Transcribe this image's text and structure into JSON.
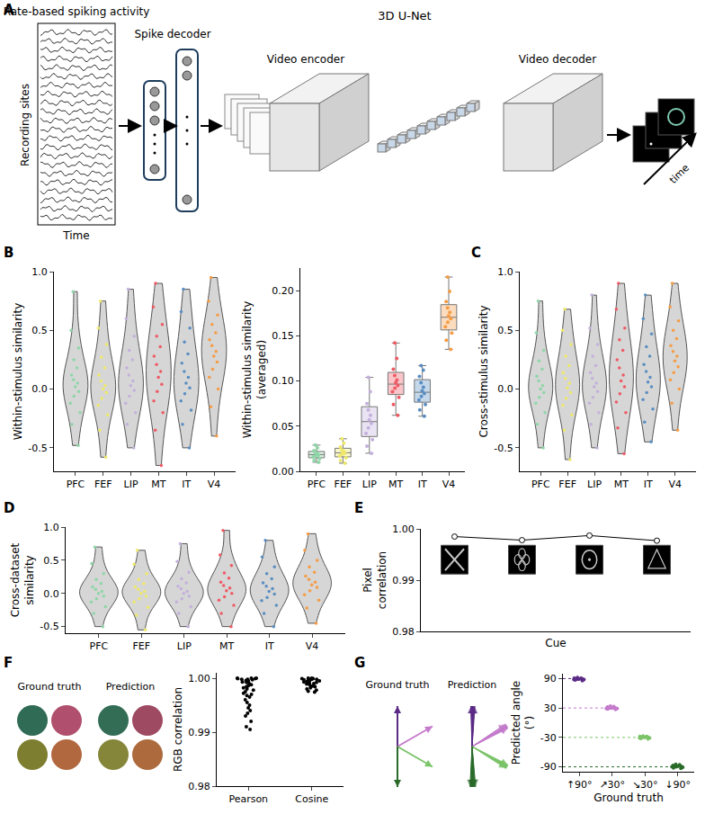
{
  "diagram": {
    "panel": "A",
    "trace_title": "Rate-based spiking activity",
    "y_label": "Recording sites",
    "x_label": "Time",
    "decoder_label": "Spike decoder",
    "network_label": "3D U-Net",
    "encoder_label": "Video encoder",
    "video_decoder_label": "Video decoder",
    "output_label": "time"
  },
  "chart_data": [
    {
      "panel": "B",
      "type": "violin",
      "ylabel": "Within-stimulus similarity",
      "categories": [
        "PFC",
        "FEF",
        "LIP",
        "MT",
        "IT",
        "V4"
      ],
      "colors": [
        "#8fd6a8",
        "#eee86a",
        "#c3b0dc",
        "#ef5a64",
        "#5a8ec2",
        "#f59c45"
      ],
      "values": [
        [
          -0.48,
          -0.3,
          -0.2,
          -0.12,
          -0.06,
          -0.02,
          0.02,
          0.05,
          0.08,
          0.12,
          0.18,
          0.25,
          0.35,
          0.5,
          0.83
        ],
        [
          -0.58,
          -0.35,
          -0.22,
          -0.14,
          -0.08,
          -0.03,
          0.0,
          0.03,
          0.07,
          0.12,
          0.18,
          0.27,
          0.38,
          0.52,
          0.75
        ],
        [
          -0.5,
          -0.3,
          -0.2,
          -0.12,
          -0.06,
          -0.01,
          0.03,
          0.07,
          0.12,
          0.18,
          0.25,
          0.33,
          0.45,
          0.6,
          0.85
        ],
        [
          -0.65,
          -0.35,
          -0.2,
          -0.1,
          -0.02,
          0.04,
          0.1,
          0.15,
          0.21,
          0.28,
          0.36,
          0.45,
          0.55,
          0.7,
          0.9
        ],
        [
          -0.5,
          -0.3,
          -0.18,
          -0.1,
          -0.04,
          0.01,
          0.05,
          0.1,
          0.15,
          0.22,
          0.3,
          0.4,
          0.52,
          0.66,
          0.85
        ],
        [
          -0.4,
          -0.15,
          0.0,
          0.1,
          0.17,
          0.23,
          0.28,
          0.32,
          0.37,
          0.42,
          0.48,
          0.55,
          0.63,
          0.75,
          0.95
        ]
      ],
      "ylim": [
        -0.7,
        1.0
      ],
      "yticks": [
        -0.5,
        {
          "value": 0,
          "label": "0.0"
        },
        0.5,
        {
          "value": 1,
          "label": "1.0"
        }
      ],
      "grid": false
    },
    {
      "type": "box",
      "ylabel": "Within-stimulus similarity (averaged)",
      "categories": [
        "PFC",
        "FEF",
        "LIP",
        "MT",
        "IT",
        "V4"
      ],
      "colors": [
        "#8fd6a8",
        "#eee86a",
        "#c3b0dc",
        "#ef5a64",
        "#5a8ec2",
        "#f59c45"
      ],
      "values": [
        [
          0.01,
          0.012,
          0.014,
          0.016,
          0.017,
          0.018,
          0.019,
          0.02,
          0.021,
          0.023,
          0.026,
          0.029
        ],
        [
          0.009,
          0.012,
          0.015,
          0.017,
          0.019,
          0.02,
          0.021,
          0.022,
          0.024,
          0.027,
          0.031,
          0.036
        ],
        [
          0.02,
          0.028,
          0.035,
          0.042,
          0.048,
          0.053,
          0.057,
          0.062,
          0.068,
          0.075,
          0.088,
          0.104
        ],
        [
          0.062,
          0.074,
          0.082,
          0.088,
          0.092,
          0.095,
          0.098,
          0.101,
          0.106,
          0.113,
          0.125,
          0.142
        ],
        [
          0.061,
          0.068,
          0.074,
          0.079,
          0.083,
          0.086,
          0.089,
          0.093,
          0.098,
          0.105,
          0.112,
          0.117
        ],
        [
          0.135,
          0.145,
          0.153,
          0.16,
          0.165,
          0.169,
          0.172,
          0.176,
          0.181,
          0.188,
          0.199,
          0.215
        ]
      ],
      "ylim": [
        0,
        0.225
      ],
      "yticks": [
        {
          "value": 0,
          "label": "0.00"
        },
        0.05,
        {
          "value": 0.1,
          "label": "0.10"
        },
        0.15,
        {
          "value": 0.2,
          "label": "0.20"
        }
      ],
      "grid": false
    },
    {
      "panel": "C",
      "type": "violin",
      "ylabel": "Cross-stimulus similarity",
      "categories": [
        "PFC",
        "FEF",
        "LIP",
        "MT",
        "IT",
        "V4"
      ],
      "colors": [
        "#8fd6a8",
        "#eee86a",
        "#c3b0dc",
        "#ef5a64",
        "#5a8ec2",
        "#f59c45"
      ],
      "values": [
        [
          -0.5,
          -0.3,
          -0.2,
          -0.12,
          -0.07,
          -0.03,
          0.0,
          0.03,
          0.07,
          0.11,
          0.17,
          0.24,
          0.33,
          0.48,
          0.75
        ],
        [
          -0.6,
          -0.35,
          -0.22,
          -0.14,
          -0.08,
          -0.03,
          0.01,
          0.05,
          0.09,
          0.14,
          0.2,
          0.28,
          0.38,
          0.5,
          0.68
        ],
        [
          -0.5,
          -0.3,
          -0.2,
          -0.12,
          -0.07,
          -0.02,
          0.02,
          0.05,
          0.09,
          0.14,
          0.2,
          0.28,
          0.38,
          0.52,
          0.8
        ],
        [
          -0.55,
          -0.33,
          -0.2,
          -0.11,
          -0.04,
          0.02,
          0.07,
          0.12,
          0.18,
          0.25,
          0.33,
          0.42,
          0.52,
          0.68,
          0.9
        ],
        [
          -0.45,
          -0.28,
          -0.17,
          -0.09,
          -0.03,
          0.02,
          0.06,
          0.1,
          0.15,
          0.21,
          0.28,
          0.36,
          0.47,
          0.6,
          0.8
        ],
        [
          -0.35,
          -0.12,
          0.0,
          0.08,
          0.14,
          0.19,
          0.24,
          0.28,
          0.32,
          0.37,
          0.43,
          0.5,
          0.58,
          0.7,
          0.9
        ]
      ],
      "ylim": [
        -0.7,
        1.0
      ],
      "yticks": [
        -0.5,
        {
          "value": 0,
          "label": "0.0"
        },
        0.5,
        {
          "value": 1,
          "label": "1.0"
        }
      ],
      "grid": false
    },
    {
      "panel": "D",
      "type": "violin",
      "ylabel": "Cross-dataset similarity",
      "categories": [
        "PFC",
        "FEF",
        "LIP",
        "MT",
        "IT",
        "V4"
      ],
      "colors": [
        "#8fd6a8",
        "#eee86a",
        "#c3b0dc",
        "#ef5a64",
        "#5a8ec2",
        "#f59c45"
      ],
      "values": [
        [
          -0.5,
          -0.3,
          -0.2,
          -0.13,
          -0.08,
          -0.04,
          0.0,
          0.03,
          0.06,
          0.1,
          0.15,
          0.21,
          0.3,
          0.45,
          0.7
        ],
        [
          -0.55,
          -0.33,
          -0.21,
          -0.13,
          -0.08,
          -0.04,
          0.0,
          0.03,
          0.06,
          0.1,
          0.15,
          0.21,
          0.3,
          0.44,
          0.65
        ],
        [
          -0.5,
          -0.3,
          -0.2,
          -0.13,
          -0.08,
          -0.04,
          0.0,
          0.03,
          0.07,
          0.11,
          0.16,
          0.22,
          0.32,
          0.48,
          0.75
        ],
        [
          -0.5,
          -0.3,
          -0.18,
          -0.1,
          -0.05,
          0.0,
          0.04,
          0.08,
          0.12,
          0.17,
          0.23,
          0.31,
          0.42,
          0.58,
          0.95
        ],
        [
          -0.5,
          -0.3,
          -0.18,
          -0.11,
          -0.06,
          -0.01,
          0.03,
          0.07,
          0.11,
          0.16,
          0.22,
          0.3,
          0.4,
          0.55,
          0.8
        ],
        [
          -0.45,
          -0.22,
          -0.1,
          -0.02,
          0.04,
          0.09,
          0.13,
          0.17,
          0.21,
          0.26,
          0.32,
          0.4,
          0.5,
          0.65,
          0.9
        ]
      ],
      "ylim": [
        -0.6,
        1.0
      ],
      "yticks": [
        -0.5,
        {
          "value": 0,
          "label": "0.0"
        },
        0.5,
        {
          "value": 1,
          "label": "1.0"
        }
      ],
      "grid": false
    },
    {
      "panel": "E",
      "type": "line",
      "xlabel": "Cue",
      "ylabel": "Pixel correlation",
      "categories": [
        null,
        null,
        null,
        null
      ],
      "values": [
        0.9985,
        0.9978,
        0.9987,
        0.9977
      ],
      "color": "#000000",
      "marker": "circle-open",
      "ylim": [
        0.98,
        1.0
      ],
      "yticks": [
        0.98,
        0.99,
        {
          "value": 1,
          "label": "1.00"
        }
      ],
      "grid": false
    },
    {
      "panel": "F",
      "type": "swarm",
      "ylabel": "RGB correlation",
      "swatches": [
        {
          "label": "Ground truth",
          "colors": [
            "#2f6b55",
            "#b04f6e",
            "#7d7e2f",
            "#b2683f"
          ]
        },
        {
          "label": "Prediction",
          "colors": [
            "#336d55",
            "#9e4a62",
            "#85863a",
            "#ad6a3c"
          ]
        }
      ],
      "categories": [
        "Pearson",
        "Cosine"
      ],
      "color": "#000000",
      "values": [
        [
          1.0,
          1.0,
          1.0,
          0.9999,
          0.9999,
          0.9998,
          0.9998,
          0.9997,
          0.9996,
          0.9995,
          0.9993,
          0.9992,
          0.999,
          0.9988,
          0.9986,
          0.9984,
          0.9982,
          0.998,
          0.9978,
          0.9975,
          0.9972,
          0.997,
          0.9968,
          0.9965,
          0.996,
          0.9955,
          0.995,
          0.9945,
          0.994,
          0.9935,
          0.993,
          0.992,
          0.991,
          0.9905
        ],
        [
          1.0,
          1.0,
          0.9999,
          0.9999,
          0.9999,
          0.9998,
          0.9998,
          0.9997,
          0.9997,
          0.9996,
          0.9995,
          0.9994,
          0.9993,
          0.9992,
          0.9991,
          0.999,
          0.9989,
          0.9988,
          0.9986,
          0.9985,
          0.9984,
          0.9982,
          0.998,
          0.9978,
          0.9976,
          0.9974
        ]
      ],
      "ylim": [
        0.98,
        1.001
      ],
      "yticks": [
        0.98,
        0.99,
        {
          "value": 1,
          "label": "1.00"
        }
      ],
      "grid": false
    },
    {
      "panel": "G",
      "type": "swarm",
      "xlabel": "Ground truth",
      "ylabel": "Predicted angle (°)",
      "arrow_labels": [
        "Ground truth",
        "Prediction"
      ],
      "categories": [
        "↑90°",
        "↗30°",
        "↘30°",
        "↓90°"
      ],
      "truth": [
        90,
        30,
        -30,
        -90
      ],
      "colors": [
        "#5b2a86",
        "#c47bcc",
        "#7cc46a",
        "#2a6b2a"
      ],
      "values": [
        [
          86,
          87,
          88,
          88,
          89,
          89,
          89,
          90,
          90,
          91,
          91,
          92
        ],
        [
          27,
          28,
          29,
          29,
          30,
          30,
          30,
          31,
          31,
          32,
          33,
          34
        ],
        [
          -33,
          -32,
          -31,
          -31,
          -30,
          -30,
          -30,
          -29,
          -29,
          -28,
          -28,
          -27
        ],
        [
          -93,
          -92,
          -91,
          -90,
          -90,
          -89,
          -89,
          -88,
          -88,
          -87,
          -86,
          -85
        ]
      ],
      "ylim": [
        -100,
        100
      ],
      "yticks": [
        -90,
        -30,
        30,
        90
      ],
      "grid": false
    }
  ]
}
